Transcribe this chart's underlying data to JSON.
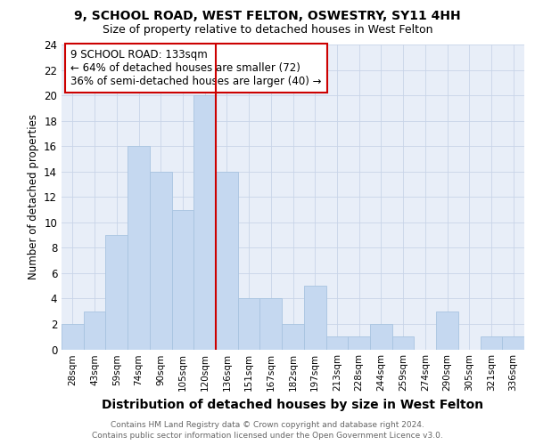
{
  "title1": "9, SCHOOL ROAD, WEST FELTON, OSWESTRY, SY11 4HH",
  "title2": "Size of property relative to detached houses in West Felton",
  "xlabel": "Distribution of detached houses by size in West Felton",
  "ylabel": "Number of detached properties",
  "categories": [
    "28sqm",
    "43sqm",
    "59sqm",
    "74sqm",
    "90sqm",
    "105sqm",
    "120sqm",
    "136sqm",
    "151sqm",
    "167sqm",
    "182sqm",
    "197sqm",
    "213sqm",
    "228sqm",
    "244sqm",
    "259sqm",
    "274sqm",
    "290sqm",
    "305sqm",
    "321sqm",
    "336sqm"
  ],
  "values": [
    2,
    3,
    9,
    16,
    14,
    11,
    20,
    14,
    4,
    4,
    2,
    5,
    1,
    1,
    2,
    1,
    0,
    3,
    0,
    1,
    1
  ],
  "bar_color": "#c5d8f0",
  "bar_edgecolor": "#a8c4e0",
  "vline_index": 7,
  "vline_color": "#cc0000",
  "annotation_text": "9 SCHOOL ROAD: 133sqm\n← 64% of detached houses are smaller (72)\n36% of semi-detached houses are larger (40) →",
  "annotation_box_facecolor": "#ffffff",
  "annotation_box_edgecolor": "#cc0000",
  "ylim": [
    0,
    24
  ],
  "yticks": [
    0,
    2,
    4,
    6,
    8,
    10,
    12,
    14,
    16,
    18,
    20,
    22,
    24
  ],
  "grid_color": "#c8d4e8",
  "plot_bg_color": "#e8eef8",
  "footer1": "Contains HM Land Registry data © Crown copyright and database right 2024.",
  "footer2": "Contains public sector information licensed under the Open Government Licence v3.0."
}
